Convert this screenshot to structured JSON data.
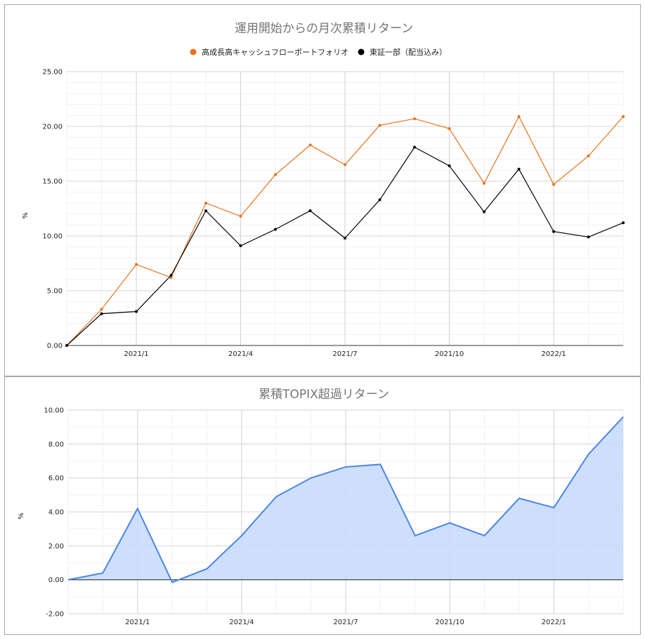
{
  "chart_data": [
    {
      "type": "line",
      "title": "運用開始からの月次累積リターン",
      "ylabel": "%",
      "ylim": [
        0,
        25
      ],
      "yticks": [
        "0.00",
        "5.00",
        "10.00",
        "15.00",
        "20.00",
        "25.00"
      ],
      "x_ticks": [
        "2021/1",
        "2021/4",
        "2021/7",
        "2021/10",
        "2022/1"
      ],
      "x": [
        "2020/11",
        "2020/12",
        "2021/1",
        "2021/2",
        "2021/3",
        "2021/4",
        "2021/5",
        "2021/6",
        "2021/7",
        "2021/8",
        "2021/9",
        "2021/10",
        "2021/11",
        "2021/12",
        "2022/1",
        "2022/2",
        "2022/3"
      ],
      "legend_position": "top",
      "grid": true,
      "series": [
        {
          "name": "高成長高キャッシュフローポートフォリオ",
          "color": "#e8711a",
          "values": [
            0.0,
            3.3,
            7.4,
            6.2,
            13.0,
            11.8,
            15.6,
            18.3,
            16.5,
            20.1,
            20.7,
            19.8,
            14.8,
            20.9,
            14.7,
            17.3,
            20.9
          ]
        },
        {
          "name": "東証一部（配当込み）",
          "color": "#000000",
          "values": [
            0.0,
            2.9,
            3.1,
            6.4,
            12.3,
            9.1,
            10.6,
            12.3,
            9.8,
            13.3,
            18.1,
            16.4,
            12.2,
            16.1,
            10.4,
            9.9,
            11.2
          ]
        }
      ]
    },
    {
      "type": "area",
      "title": "累積TOPIX超過リターン",
      "ylabel": "%",
      "ylim": [
        -2,
        10
      ],
      "yticks": [
        "-2.00",
        "0.00",
        "2.00",
        "4.00",
        "6.00",
        "8.00",
        "10.00"
      ],
      "x_ticks": [
        "2021/1",
        "2021/4",
        "2021/7",
        "2021/10",
        "2022/1"
      ],
      "x": [
        "2020/11",
        "2020/12",
        "2021/1",
        "2021/2",
        "2021/3",
        "2021/4",
        "2021/5",
        "2021/6",
        "2021/7",
        "2021/8",
        "2021/9",
        "2021/10",
        "2021/11",
        "2021/12",
        "2022/1",
        "2022/2",
        "2022/3"
      ],
      "grid": true,
      "series": [
        {
          "line_color": "#4a86e8",
          "fill_color": "#c6d9fb",
          "values": [
            0.0,
            0.4,
            4.2,
            -0.15,
            0.65,
            2.6,
            4.9,
            6.0,
            6.65,
            6.8,
            2.6,
            3.35,
            2.6,
            4.8,
            4.25,
            7.4,
            9.6
          ]
        }
      ]
    }
  ]
}
